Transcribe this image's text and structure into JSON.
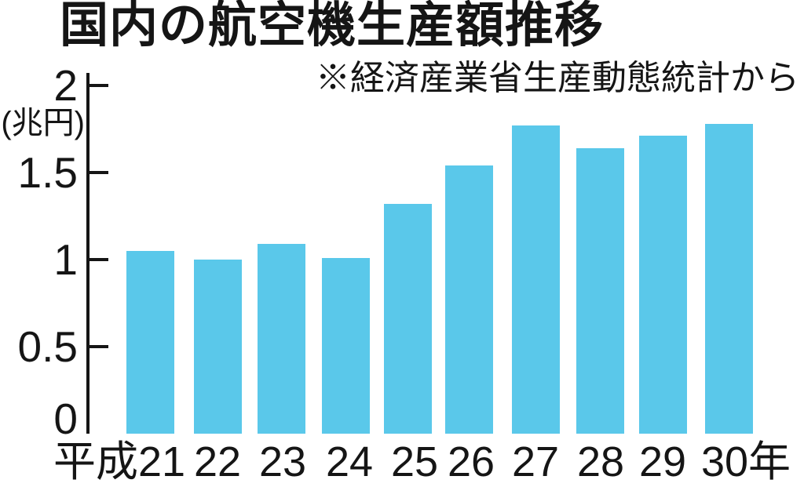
{
  "page": {
    "background": "#ffffff",
    "text_color": "#151515"
  },
  "chart_data": {
    "type": "bar",
    "title": "国内の航空機生産額推移",
    "source_note": "※経済産業省生産動態統計から",
    "unit_label": "(兆円)",
    "xlabel": "",
    "ylabel": "兆円",
    "categories": [
      "平成21",
      "22",
      "23",
      "24",
      "25",
      "26",
      "27",
      "28",
      "29",
      "30年"
    ],
    "values": [
      1.05,
      1.0,
      1.09,
      1.01,
      1.32,
      1.54,
      1.77,
      1.64,
      1.71,
      1.78
    ],
    "y_ticks": [
      {
        "value": 2,
        "label": "2"
      },
      {
        "value": 1.5,
        "label": "1.5"
      },
      {
        "value": 1,
        "label": "1"
      },
      {
        "value": 0.5,
        "label": "0.5"
      },
      {
        "value": 0,
        "label": "0"
      }
    ],
    "ylim": [
      0,
      2
    ],
    "grid": false,
    "legend": false,
    "bar_color": "#5ac8ea",
    "axis_color": "#151515"
  }
}
